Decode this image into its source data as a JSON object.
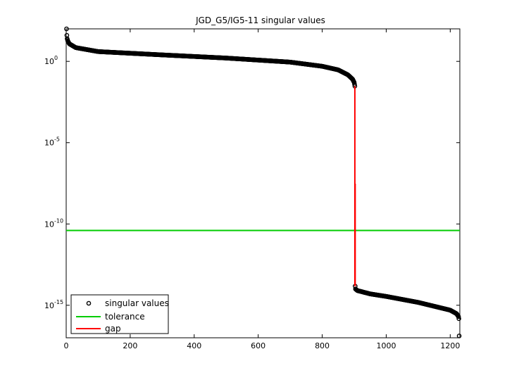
{
  "chart_data": {
    "type": "scatter",
    "title": "JGD_G5/IG5-11 singular values",
    "xlabel": "",
    "ylabel": "",
    "xscale": "linear",
    "yscale": "log",
    "xlim": [
      0,
      1230
    ],
    "ylim": [
      1e-17,
      100.0
    ],
    "xticks": [
      0,
      200,
      400,
      600,
      800,
      1000,
      1200
    ],
    "yticks": [
      {
        "value": 1.0,
        "base": "10",
        "exp": "0"
      },
      {
        "value": 1e-05,
        "base": "10",
        "exp": "-5"
      },
      {
        "value": 1e-10,
        "base": "10",
        "exp": "-10"
      },
      {
        "value": 1e-15,
        "base": "10",
        "exp": "-15"
      }
    ],
    "grid": false,
    "legend_position": "bottom-left",
    "series": [
      {
        "name": "singular values",
        "style": "circle markers",
        "color": "#000000",
        "n_points": 1228,
        "profile_upper": {
          "index": [
            1,
            2,
            3,
            5,
            10,
            30,
            100,
            300,
            500,
            700,
            800,
            850,
            880,
            895,
            900,
            902
          ],
          "value": [
            100,
            40,
            25,
            18,
            12,
            7,
            4,
            2.5,
            1.6,
            0.9,
            0.5,
            0.3,
            0.15,
            0.08,
            0.05,
            0.03
          ]
        },
        "profile_lower": {
          "index": [
            903,
            904,
            910,
            950,
            1000,
            1100,
            1200,
            1220,
            1226,
            1227,
            1228
          ],
          "value": [
            1.5e-14,
            1e-14,
            8e-15,
            5e-15,
            3.5e-15,
            1.5e-15,
            5e-16,
            3e-16,
            2e-16,
            1.5e-16,
            1.3e-17
          ]
        }
      },
      {
        "name": "tolerance",
        "style": "line",
        "color": "#00cc00",
        "y": 4e-11
      },
      {
        "name": "gap",
        "style": "line",
        "color": "#ff0000",
        "segments": [
          {
            "x": [
              902,
              902
            ],
            "y": [
              0.03,
              1.5e-14
            ]
          },
          {
            "x": [
              903,
              903
            ],
            "y": [
              3e-08,
              1.5e-14
            ]
          }
        ]
      }
    ]
  }
}
